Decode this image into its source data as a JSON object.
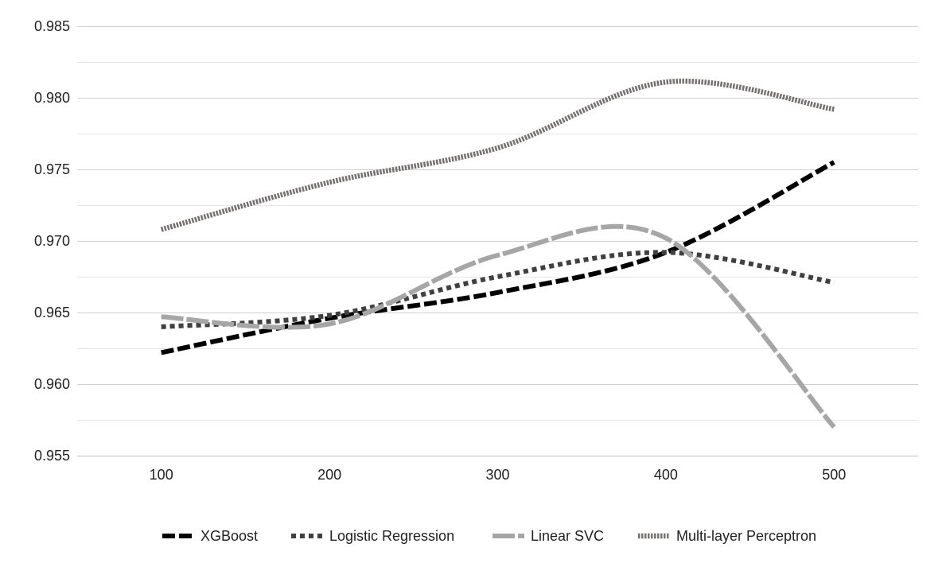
{
  "chart_data": {
    "type": "line",
    "title": "",
    "xlabel": "",
    "ylabel": "",
    "x": [
      100,
      200,
      300,
      400,
      500
    ],
    "xlim": [
      50,
      550
    ],
    "ylim": [
      0.955,
      0.985
    ],
    "yticks": [
      "0.955",
      "0.960",
      "0.965",
      "0.970",
      "0.975",
      "0.980",
      "0.985"
    ],
    "xticks": [
      "100",
      "200",
      "300",
      "400",
      "500"
    ],
    "grid": true,
    "minor_grid": true,
    "legend": "bottom",
    "series": [
      {
        "name": "XGBoost",
        "values": [
          0.9622,
          0.9646,
          0.9664,
          0.9692,
          0.9755
        ],
        "color": "#000000",
        "style": "dash"
      },
      {
        "name": "Logistic Regression",
        "values": [
          0.964,
          0.9648,
          0.9675,
          0.9692,
          0.9671
        ],
        "color": "#404040",
        "style": "dot"
      },
      {
        "name": "Linear SVC",
        "values": [
          0.9647,
          0.9642,
          0.969,
          0.9702,
          0.957
        ],
        "color": "#a6a6a6",
        "style": "longdash"
      },
      {
        "name": "Multi-layer Perceptron",
        "values": [
          0.9708,
          0.9741,
          0.9765,
          0.9811,
          0.9792
        ],
        "color": "#767171",
        "style": "fine"
      }
    ]
  }
}
